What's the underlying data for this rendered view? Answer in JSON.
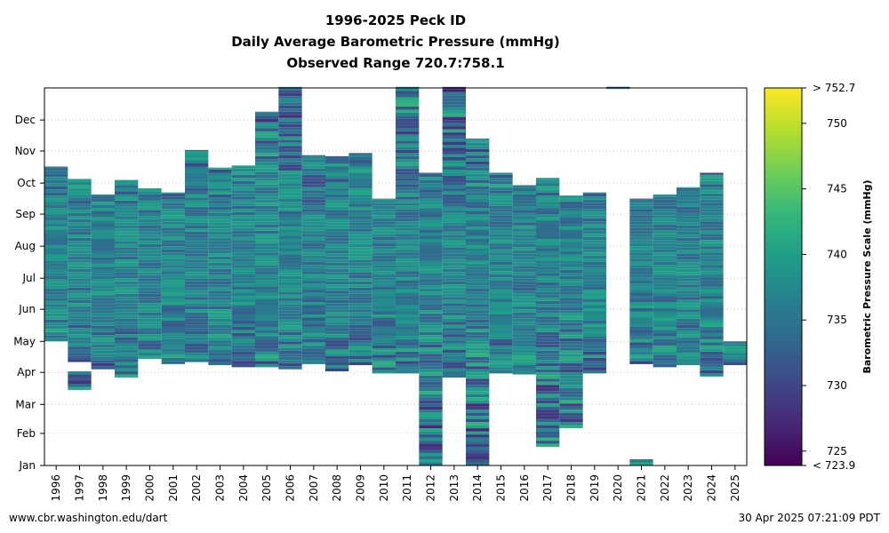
{
  "chart_data": {
    "type": "heatmap",
    "title_lines": [
      "1996-2025 Peck ID",
      "Daily Average Barometric Pressure (mmHg)",
      "Observed Range 720.7:758.1"
    ],
    "x_categories": [
      "1996",
      "1997",
      "1998",
      "1999",
      "2000",
      "2001",
      "2002",
      "2003",
      "2004",
      "2005",
      "2006",
      "2007",
      "2008",
      "2009",
      "2010",
      "2011",
      "2012",
      "2013",
      "2014",
      "2015",
      "2016",
      "2017",
      "2018",
      "2019",
      "2020",
      "2021",
      "2022",
      "2023",
      "2024",
      "2025"
    ],
    "y_ticks": [
      "Jan",
      "Feb",
      "Mar",
      "Apr",
      "May",
      "Jun",
      "Jul",
      "Aug",
      "Sep",
      "Oct",
      "Nov",
      "Dec"
    ],
    "y_tick_day_of_year": [
      1,
      32,
      60,
      91,
      121,
      152,
      182,
      213,
      244,
      274,
      305,
      335
    ],
    "y_range_day_of_year": [
      1,
      366
    ],
    "grid": "horizontal-dotted",
    "colorbar": {
      "label": "Barometric Pressure Scale (mmHg)",
      "min": 723.9,
      "max": 752.7,
      "ticks": [
        725,
        730,
        735,
        740,
        745,
        750
      ],
      "top_label": "> 752.7",
      "bottom_label": "< 723.9",
      "colormap": "viridis",
      "colormap_colors": [
        "#440154",
        "#482878",
        "#3e4989",
        "#31688e",
        "#26828e",
        "#1f9e89",
        "#35b779",
        "#6ece58",
        "#b5de2b",
        "#fde725"
      ]
    },
    "coverage_segments": [
      {
        "year": "1996",
        "segments": [
          [
            121,
            289
          ]
        ]
      },
      {
        "year": "1997",
        "segments": [
          [
            74,
            91
          ],
          [
            101,
            277
          ]
        ]
      },
      {
        "year": "1998",
        "segments": [
          [
            94,
            262
          ]
        ]
      },
      {
        "year": "1999",
        "segments": [
          [
            86,
            276
          ]
        ]
      },
      {
        "year": "2000",
        "segments": [
          [
            104,
            268
          ]
        ]
      },
      {
        "year": "2001",
        "segments": [
          [
            99,
            264
          ]
        ]
      },
      {
        "year": "2002",
        "segments": [
          [
            101,
            305
          ]
        ]
      },
      {
        "year": "2003",
        "segments": [
          [
            98,
            288
          ]
        ]
      },
      {
        "year": "2004",
        "segments": [
          [
            96,
            290
          ]
        ]
      },
      {
        "year": "2005",
        "segments": [
          [
            96,
            342
          ]
        ]
      },
      {
        "year": "2006",
        "segments": [
          [
            94,
            366
          ]
        ]
      },
      {
        "year": "2007",
        "segments": [
          [
            99,
            300
          ]
        ]
      },
      {
        "year": "2008",
        "segments": [
          [
            92,
            299
          ]
        ]
      },
      {
        "year": "2009",
        "segments": [
          [
            98,
            302
          ]
        ]
      },
      {
        "year": "2010",
        "segments": [
          [
            90,
            258
          ]
        ]
      },
      {
        "year": "2011",
        "segments": [
          [
            90,
            366
          ]
        ]
      },
      {
        "year": "2012",
        "segments": [
          [
            1,
            283
          ]
        ]
      },
      {
        "year": "2013",
        "segments": [
          [
            86,
            366
          ]
        ]
      },
      {
        "year": "2014",
        "segments": [
          [
            1,
            316
          ]
        ]
      },
      {
        "year": "2015",
        "segments": [
          [
            90,
            283
          ]
        ]
      },
      {
        "year": "2016",
        "segments": [
          [
            89,
            271
          ]
        ]
      },
      {
        "year": "2017",
        "segments": [
          [
            19,
            278
          ]
        ]
      },
      {
        "year": "2018",
        "segments": [
          [
            37,
            261
          ]
        ]
      },
      {
        "year": "2019",
        "segments": [
          [
            90,
            264
          ]
        ]
      },
      {
        "year": "2020",
        "segments": [
          [
            365,
            366
          ],
          [
            366,
            366
          ]
        ]
      },
      {
        "year": "2021",
        "segments": [
          [
            1,
            6
          ],
          [
            99,
            258
          ]
        ]
      },
      {
        "year": "2022",
        "segments": [
          [
            96,
            262
          ]
        ]
      },
      {
        "year": "2023",
        "segments": [
          [
            98,
            269
          ]
        ]
      },
      {
        "year": "2024",
        "segments": [
          [
            87,
            283
          ]
        ]
      },
      {
        "year": "2025",
        "segments": [
          [
            98,
            120
          ]
        ]
      }
    ]
  },
  "footer": {
    "left": "www.cbr.washington.edu/dart",
    "right": "30 Apr 2025 07:21:09 PDT"
  }
}
